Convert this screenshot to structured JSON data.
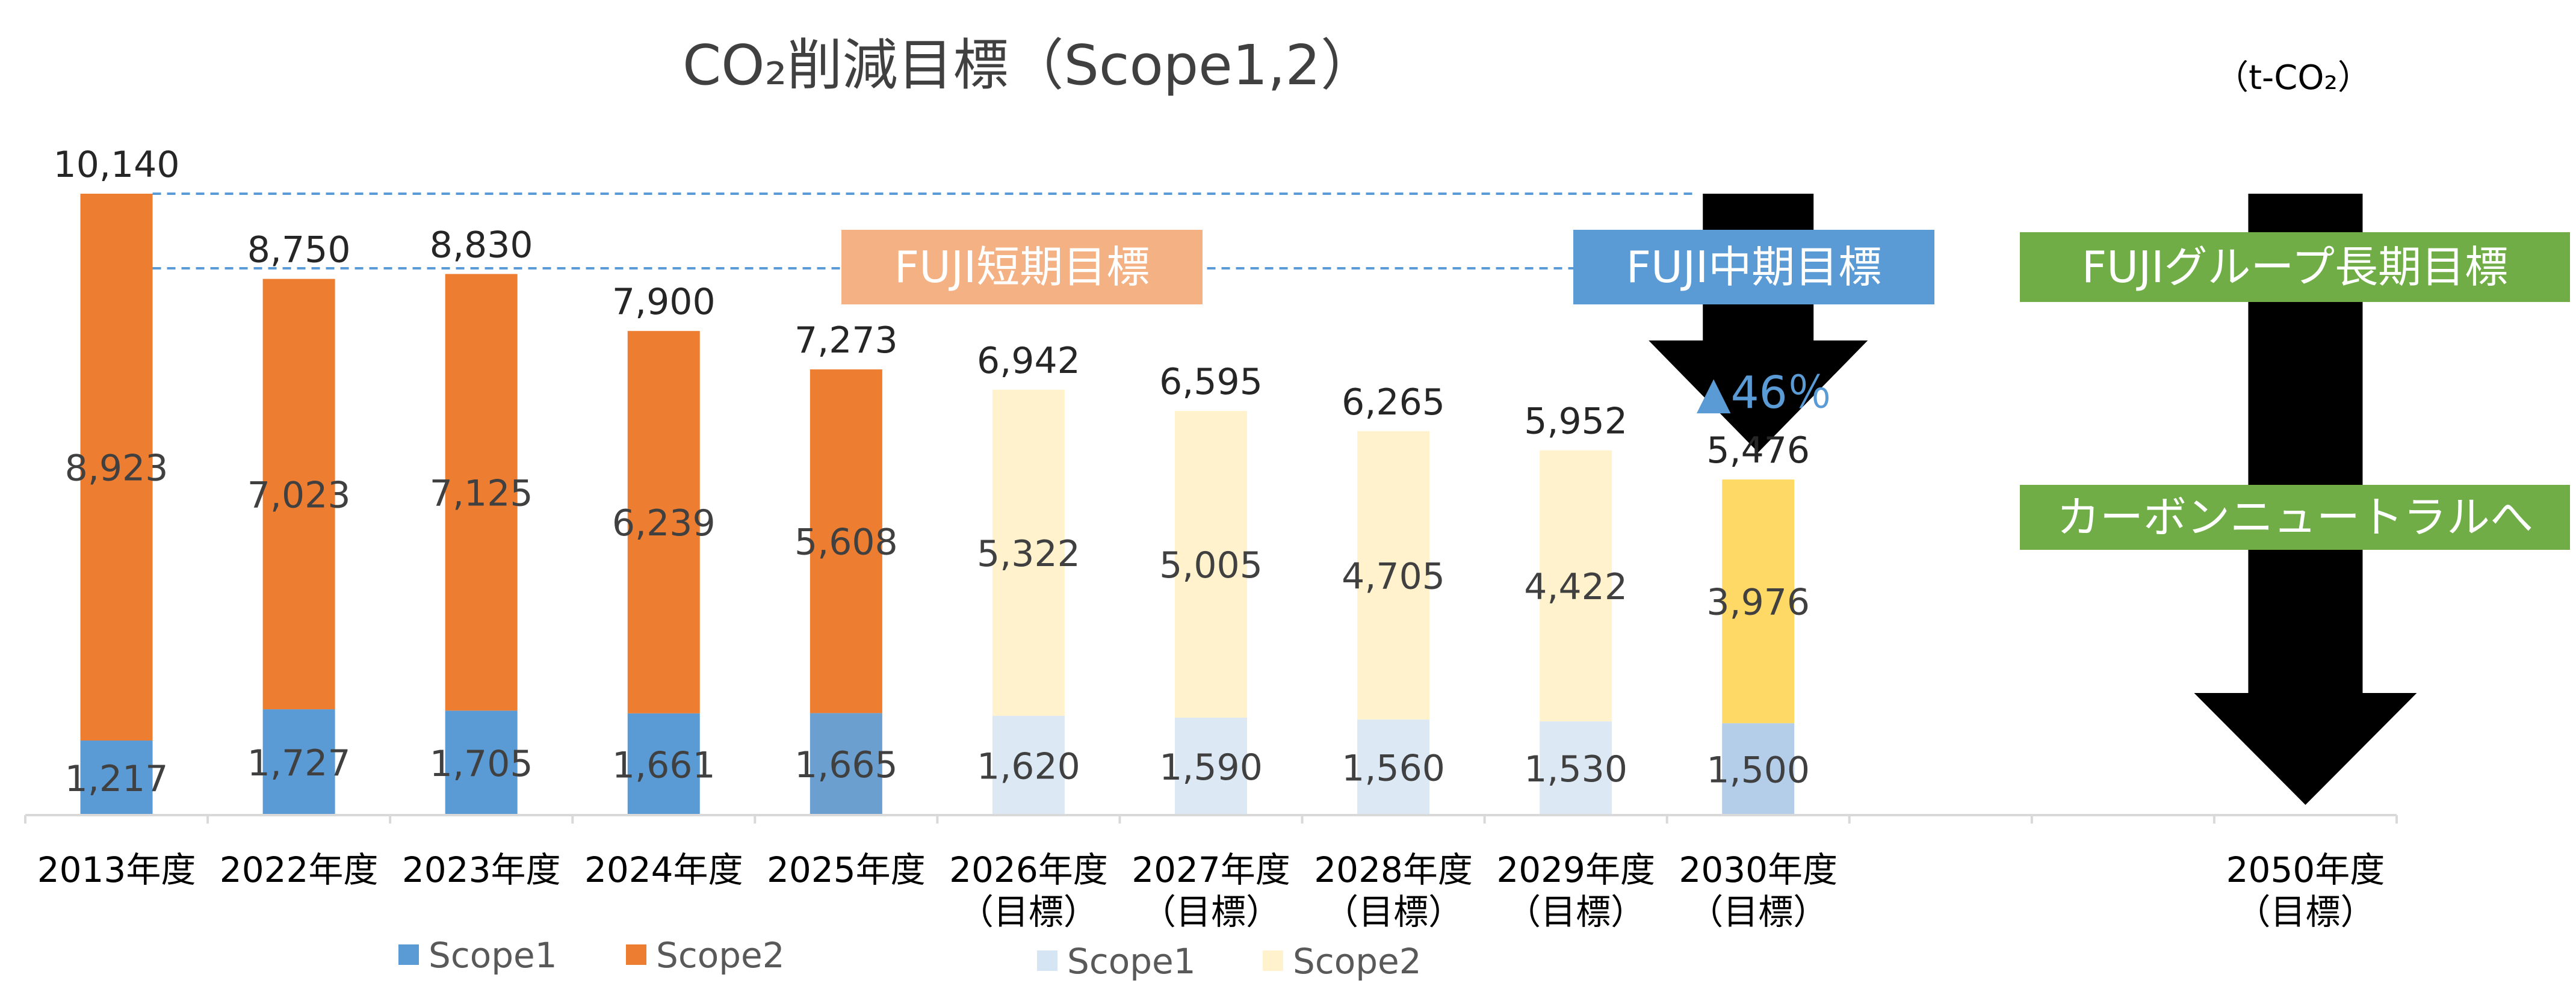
{
  "chart_data": {
    "type": "bar",
    "stacked": true,
    "title": "CO₂削減目標（Scope1,2）",
    "unit": "（t-CO₂）",
    "categories": [
      {
        "line1": "2013年度",
        "line2": ""
      },
      {
        "line1": "2022年度",
        "line2": ""
      },
      {
        "line1": "2023年度",
        "line2": ""
      },
      {
        "line1": "2024年度",
        "line2": ""
      },
      {
        "line1": "2025年度",
        "line2": ""
      },
      {
        "line1": "2026年度",
        "line2": "（目標）"
      },
      {
        "line1": "2027年度",
        "line2": "（目標）"
      },
      {
        "line1": "2028年度",
        "line2": "（目標）"
      },
      {
        "line1": "2029年度",
        "line2": "（目標）"
      },
      {
        "line1": "2030年度",
        "line2": "（目標）"
      },
      {
        "line1": "",
        "line2": ""
      },
      {
        "line1": "",
        "line2": ""
      },
      {
        "line1": "2050年度",
        "line2": "（目標）"
      }
    ],
    "series": [
      {
        "name": "Scope1",
        "values": [
          1217,
          1727,
          1705,
          1661,
          1665,
          1620,
          1590,
          1560,
          1530,
          1500,
          null,
          null,
          null
        ]
      },
      {
        "name": "Scope2",
        "values": [
          8923,
          7023,
          7125,
          6239,
          5608,
          5322,
          5005,
          4705,
          4422,
          3976,
          null,
          null,
          null
        ]
      }
    ],
    "totals": [
      10140,
      8750,
      8830,
      7900,
      7273,
      6942,
      6595,
      6265,
      5952,
      5476,
      null,
      null,
      null
    ],
    "value_labels": {
      "scope1": [
        "1,217",
        "1,727",
        "1,705",
        "1,661",
        "1,665",
        "1,620",
        "1,590",
        "1,560",
        "1,530",
        "1,500"
      ],
      "scope2": [
        "8,923",
        "7,023",
        "7,125",
        "6,239",
        "5,608",
        "5,322",
        "5,005",
        "4,705",
        "4,422",
        "3,976"
      ],
      "totals": [
        "10,140",
        "8,750",
        "8,830",
        "7,900",
        "7,273",
        "6,942",
        "6,595",
        "6,265",
        "5,952",
        "5,476"
      ]
    },
    "ylim": [
      0,
      10140
    ],
    "grid": false,
    "legend": [
      {
        "name": "Scope1",
        "color": "#5b9bd5"
      },
      {
        "name": "Scope2",
        "color": "#ed7d31"
      },
      {
        "name": "Scope1",
        "color": "#d6e5f4"
      },
      {
        "name": "Scope2",
        "color": "#fff2cc"
      }
    ],
    "colors": {
      "scope1_actual": "#5b9bd5",
      "scope2_actual": "#ed7d31",
      "scope1_target": "#dce9f5",
      "scope2_target": "#fff2cc",
      "scope1_2030": "#b4cde9",
      "scope2_2030": "#ffd966",
      "scope1_2025": "#6a9fd0",
      "dashed_line": "#5b9bd5",
      "axis": "#d9d9d9"
    },
    "annotations": {
      "short_term": {
        "text": "FUJI短期目標",
        "color": "#f4b183"
      },
      "mid_term": {
        "text": "FUJI中期目標",
        "color": "#5b9bd5"
      },
      "reduction": {
        "text": "▲46％"
      },
      "long_term": {
        "text": "FUJIグループ長期目標",
        "color": "#70ad47"
      },
      "carbon_neutral": {
        "text": "カーボンニュートラルへ",
        "color": "#70ad47"
      },
      "mid_arrow_color": "#bdd7ee",
      "long_arrow_color": "#a9d18e"
    }
  }
}
